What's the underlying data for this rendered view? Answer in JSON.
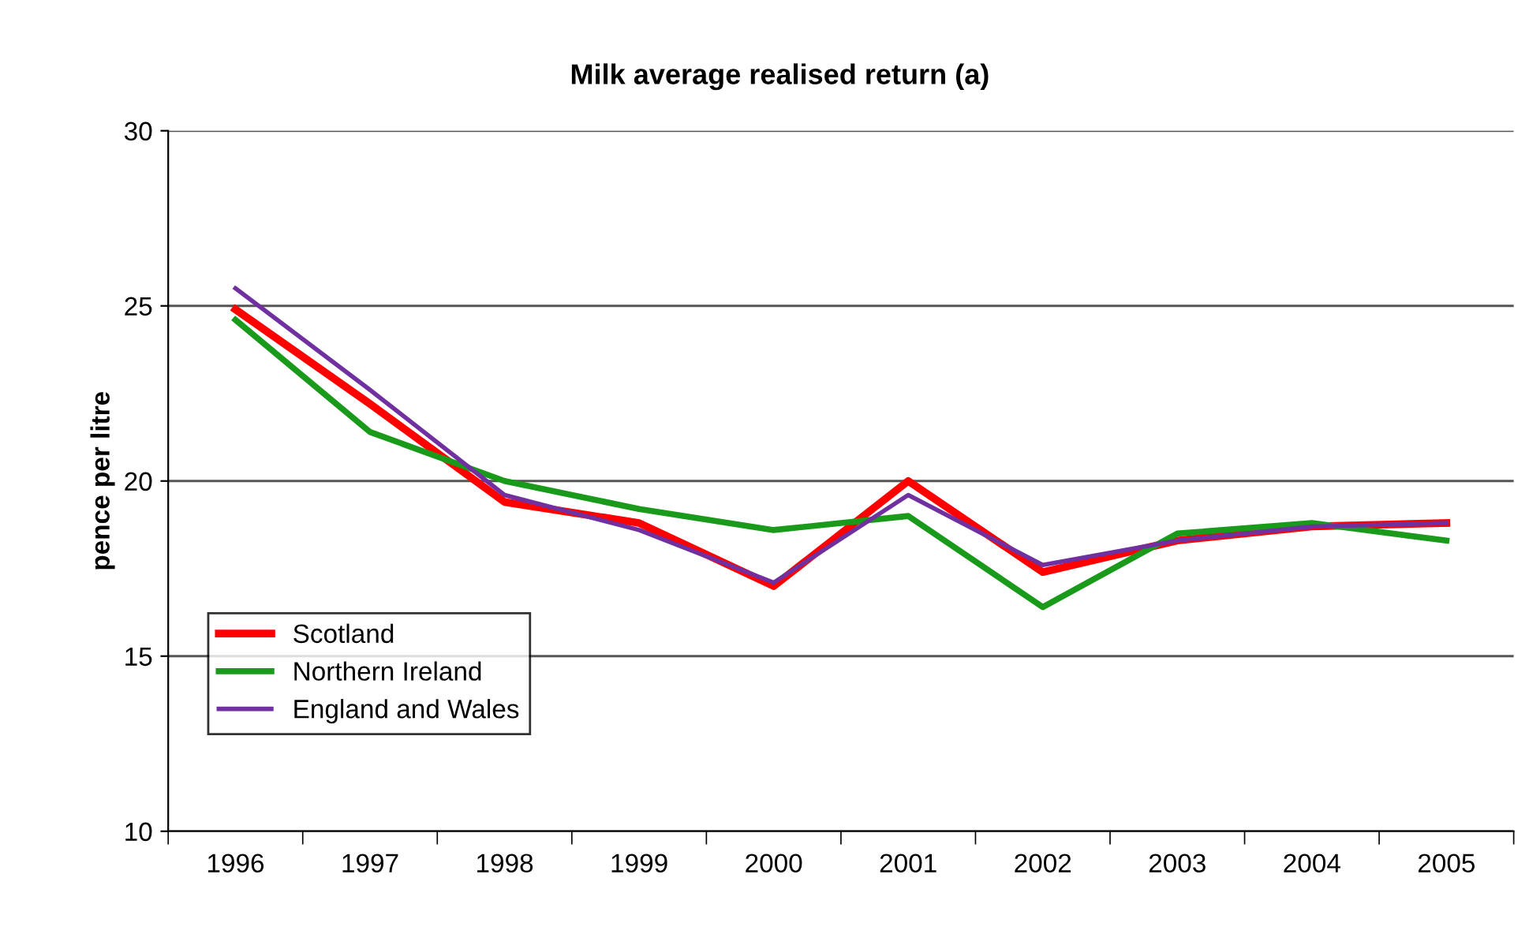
{
  "chart_data": {
    "type": "line",
    "title": "Milk average realised return (a)",
    "ylabel": "pence per litre",
    "categories": [
      "1996",
      "1997",
      "1998",
      "1999",
      "2000",
      "2001",
      "2002",
      "2003",
      "2004",
      "2005"
    ],
    "series": [
      {
        "name": "Scotland",
        "color": "#ff0000",
        "values": [
          24.9,
          22.2,
          19.4,
          18.8,
          17.0,
          20.0,
          17.4,
          18.3,
          18.7,
          18.8
        ]
      },
      {
        "name": "Northern Ireland",
        "color": "#1a9a1a",
        "values": [
          24.6,
          21.4,
          20.0,
          19.2,
          18.6,
          19.0,
          16.4,
          18.5,
          18.8,
          18.3
        ]
      },
      {
        "name": "England and Wales",
        "color": "#7030a0",
        "values": [
          25.5,
          22.6,
          19.6,
          18.6,
          17.1,
          19.6,
          17.6,
          18.3,
          18.7,
          18.8
        ]
      }
    ],
    "ylim": [
      10,
      30
    ],
    "yticks": [
      10,
      15,
      20,
      25,
      30
    ],
    "grid": "y",
    "legend": "bottom left",
    "marker": "none",
    "line_style": "solid"
  }
}
